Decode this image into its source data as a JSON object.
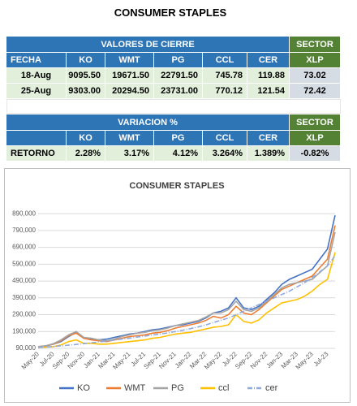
{
  "title": "CONSUMER STAPLES",
  "table1": {
    "header": [
      "VALORES DE CIERRE",
      "SECTOR"
    ],
    "columns": [
      "FECHA",
      "KO",
      "WMT",
      "PG",
      "CCL",
      "CER",
      "XLP"
    ],
    "rows": [
      [
        "18-Aug",
        "9095.50",
        "19671.50",
        "22791.50",
        "745.78",
        "119.88",
        "73.02"
      ],
      [
        "25-Aug",
        "9303.00",
        "20294.50",
        "23731.00",
        "770.12",
        "121.54",
        "72.42"
      ]
    ]
  },
  "table2": {
    "header": [
      "VARIACION %",
      "SECTOR"
    ],
    "columns": [
      "KO",
      "WMT",
      "PG",
      "CCL",
      "CER",
      "XLP"
    ],
    "rows": [
      [
        "RETORNO",
        "2.28%",
        "3.17%",
        "4.12%",
        "3.264%",
        "1.389%",
        "-0.82%"
      ]
    ]
  },
  "chart_data": {
    "type": "line",
    "title": "CONSUMER STAPLES",
    "categories": [
      "May-20",
      null,
      "Jul-20",
      null,
      "Sep-20",
      null,
      "Nov-20",
      null,
      "Jan-21",
      null,
      "Mar-21",
      null,
      "May-21",
      null,
      "Jul-21",
      null,
      "Sep-21",
      null,
      "Nov-21",
      null,
      "Jan-22",
      null,
      "Mar-22",
      null,
      "May-22",
      null,
      "Jul-22",
      null,
      "Sep-22",
      null,
      "Nov-22",
      null,
      "Jan-23",
      null,
      "Mar-23",
      null,
      "May-23",
      null,
      "Jul-23",
      null
    ],
    "ylim": [
      90000,
      910000
    ],
    "yticks": [
      {
        "value": 90000,
        "label": "90,000"
      },
      {
        "value": 190000,
        "label": "190,000"
      },
      {
        "value": 290000,
        "label": "290,000"
      },
      {
        "value": 390000,
        "label": "390,000"
      },
      {
        "value": 490000,
        "label": "490,000"
      },
      {
        "value": 590000,
        "label": "590,000"
      },
      {
        "value": 690000,
        "label": "690,000"
      },
      {
        "value": 790000,
        "label": "790,000"
      },
      {
        "value": 890000,
        "label": "890,000"
      }
    ],
    "grid": true,
    "legend": "bottom",
    "series": [
      {
        "name": "KO",
        "color": "#4472c4",
        "values": [
          100000,
          105000,
          115000,
          130000,
          160000,
          185000,
          150000,
          145000,
          140000,
          145000,
          155000,
          165000,
          175000,
          180000,
          190000,
          200000,
          205000,
          215000,
          225000,
          230000,
          240000,
          250000,
          270000,
          300000,
          310000,
          330000,
          390000,
          330000,
          320000,
          340000,
          380000,
          420000,
          470000,
          500000,
          520000,
          540000,
          560000,
          620000,
          680000,
          880000
        ]
      },
      {
        "name": "WMT",
        "color": "#ed7d31",
        "values": [
          100000,
          104000,
          115000,
          135000,
          165000,
          180000,
          150000,
          140000,
          135000,
          130000,
          140000,
          150000,
          160000,
          165000,
          170000,
          180000,
          185000,
          195000,
          210000,
          220000,
          230000,
          240000,
          255000,
          280000,
          270000,
          290000,
          340000,
          300000,
          290000,
          320000,
          360000,
          400000,
          440000,
          460000,
          480000,
          500000,
          520000,
          570000,
          620000,
          820000
        ]
      },
      {
        "name": "PG",
        "color": "#a5a5a5",
        "values": [
          100000,
          105000,
          118000,
          140000,
          170000,
          190000,
          155000,
          150000,
          140000,
          135000,
          145000,
          160000,
          170000,
          180000,
          185000,
          195000,
          200000,
          210000,
          225000,
          235000,
          245000,
          255000,
          275000,
          300000,
          300000,
          320000,
          370000,
          320000,
          310000,
          330000,
          370000,
          410000,
          450000,
          470000,
          480000,
          490000,
          500000,
          540000,
          580000,
          780000
        ]
      },
      {
        "name": "ccl",
        "color": "#ffc000",
        "values": [
          95000,
          97000,
          100000,
          110000,
          130000,
          140000,
          120000,
          120000,
          115000,
          115000,
          120000,
          125000,
          130000,
          135000,
          140000,
          150000,
          155000,
          165000,
          175000,
          180000,
          185000,
          195000,
          205000,
          215000,
          220000,
          230000,
          290000,
          250000,
          240000,
          260000,
          300000,
          330000,
          360000,
          370000,
          380000,
          400000,
          430000,
          470000,
          500000,
          660000
        ]
      },
      {
        "name": "cer",
        "color": "#8faadc",
        "dashed": true,
        "values": [
          95000,
          98000,
          101000,
          105000,
          109000,
          113000,
          118000,
          123000,
          128000,
          133000,
          139000,
          145000,
          151000,
          157000,
          163000,
          169000,
          175000,
          182000,
          190000,
          198000,
          207000,
          217000,
          229000,
          243000,
          257000,
          270000,
          290000,
          310000,
          330000,
          350000,
          370000,
          390000,
          410000,
          430000,
          455000,
          480000,
          510000,
          545000,
          580000,
          640000
        ]
      }
    ]
  }
}
